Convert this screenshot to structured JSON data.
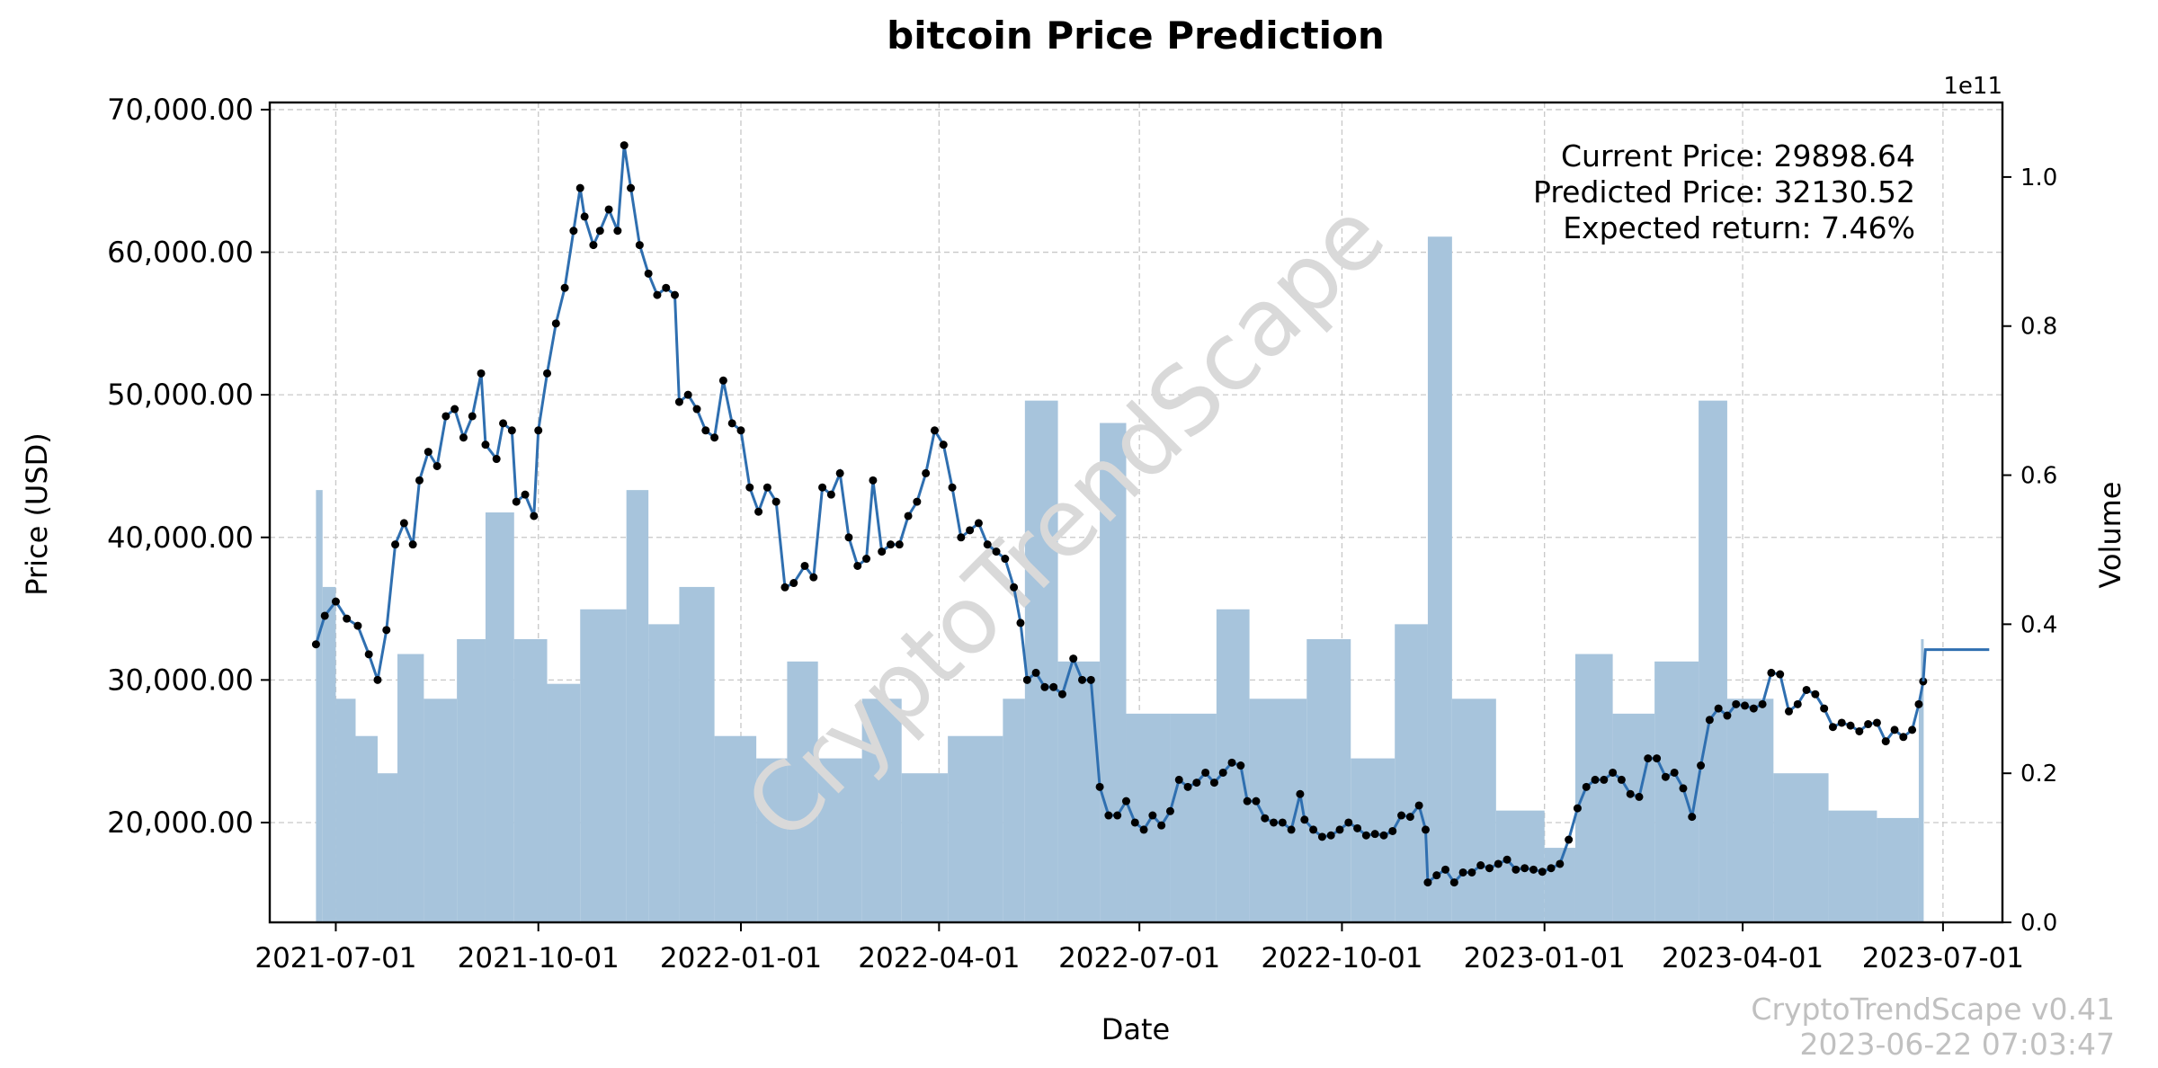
{
  "chart_data": {
    "type": "line",
    "title": "bitcoin Price Prediction",
    "xlabel": "Date",
    "ylabel": "Price (USD)",
    "y2label": "Volume",
    "y2_offset_label": "1e11",
    "xlim": [
      "2021-06-01",
      "2023-07-28"
    ],
    "ylim": [
      13000,
      70500
    ],
    "y2lim": [
      0,
      1.1
    ],
    "grid": true,
    "x_ticks": [
      "2021-07-01",
      "2021-10-01",
      "2022-01-01",
      "2022-04-01",
      "2022-07-01",
      "2022-10-01",
      "2023-01-01",
      "2023-04-01",
      "2023-07-01"
    ],
    "y_ticks": [
      20000,
      30000,
      40000,
      50000,
      60000,
      70000
    ],
    "y_tick_labels": [
      "20,000.00",
      "30,000.00",
      "40,000.00",
      "50,000.00",
      "60,000.00",
      "70,000.00"
    ],
    "y2_ticks": [
      0.0,
      0.2,
      0.4,
      0.6,
      0.8,
      1.0
    ],
    "y2_tick_labels": [
      "0.0",
      "0.2",
      "0.4",
      "0.6",
      "0.8",
      "1.0"
    ],
    "annotation": [
      "Current Price: 29898.64",
      "Predicted Price: 32130.52",
      "Expected return: 7.46%"
    ],
    "watermark": "CryptoTrendScape",
    "footer": [
      "CryptoTrendScape v0.41",
      "2023-06-22 07:03:47"
    ],
    "colors": {
      "price": "#2f6fb0",
      "markers": "#000000",
      "volume": "#a7c4dc",
      "grid": "#c8c8c8",
      "watermark": "#d9d9d9",
      "footer": "#c0c0c0"
    },
    "series": [
      {
        "kind": "price",
        "points": [
          [
            "2021-06-22",
            32500
          ],
          [
            "2021-06-26",
            34500
          ],
          [
            "2021-07-01",
            35500
          ],
          [
            "2021-07-06",
            34300
          ],
          [
            "2021-07-11",
            33800
          ],
          [
            "2021-07-16",
            31800
          ],
          [
            "2021-07-20",
            30000
          ],
          [
            "2021-07-24",
            33500
          ],
          [
            "2021-07-28",
            39500
          ],
          [
            "2021-08-01",
            41000
          ],
          [
            "2021-08-05",
            39500
          ],
          [
            "2021-08-08",
            44000
          ],
          [
            "2021-08-12",
            46000
          ],
          [
            "2021-08-16",
            45000
          ],
          [
            "2021-08-20",
            48500
          ],
          [
            "2021-08-24",
            49000
          ],
          [
            "2021-08-28",
            47000
          ],
          [
            "2021-09-01",
            48500
          ],
          [
            "2021-09-05",
            51500
          ],
          [
            "2021-09-07",
            46500
          ],
          [
            "2021-09-12",
            45500
          ],
          [
            "2021-09-15",
            48000
          ],
          [
            "2021-09-19",
            47500
          ],
          [
            "2021-09-21",
            42500
          ],
          [
            "2021-09-25",
            43000
          ],
          [
            "2021-09-29",
            41500
          ],
          [
            "2021-10-01",
            47500
          ],
          [
            "2021-10-05",
            51500
          ],
          [
            "2021-10-09",
            55000
          ],
          [
            "2021-10-13",
            57500
          ],
          [
            "2021-10-17",
            61500
          ],
          [
            "2021-10-20",
            64500
          ],
          [
            "2021-10-22",
            62500
          ],
          [
            "2021-10-26",
            60500
          ],
          [
            "2021-10-29",
            61500
          ],
          [
            "2021-11-02",
            63000
          ],
          [
            "2021-11-06",
            61500
          ],
          [
            "2021-11-09",
            67500
          ],
          [
            "2021-11-12",
            64500
          ],
          [
            "2021-11-16",
            60500
          ],
          [
            "2021-11-20",
            58500
          ],
          [
            "2021-11-24",
            57000
          ],
          [
            "2021-11-28",
            57500
          ],
          [
            "2021-12-02",
            57000
          ],
          [
            "2021-12-04",
            49500
          ],
          [
            "2021-12-08",
            50000
          ],
          [
            "2021-12-12",
            49000
          ],
          [
            "2021-12-16",
            47500
          ],
          [
            "2021-12-20",
            47000
          ],
          [
            "2021-12-24",
            51000
          ],
          [
            "2021-12-28",
            48000
          ],
          [
            "2022-01-01",
            47500
          ],
          [
            "2022-01-05",
            43500
          ],
          [
            "2022-01-09",
            41800
          ],
          [
            "2022-01-13",
            43500
          ],
          [
            "2022-01-17",
            42500
          ],
          [
            "2022-01-21",
            36500
          ],
          [
            "2022-01-25",
            36800
          ],
          [
            "2022-01-30",
            38000
          ],
          [
            "2022-02-03",
            37200
          ],
          [
            "2022-02-07",
            43500
          ],
          [
            "2022-02-11",
            43000
          ],
          [
            "2022-02-15",
            44500
          ],
          [
            "2022-02-19",
            40000
          ],
          [
            "2022-02-23",
            38000
          ],
          [
            "2022-02-27",
            38500
          ],
          [
            "2022-03-02",
            44000
          ],
          [
            "2022-03-06",
            39000
          ],
          [
            "2022-03-10",
            39500
          ],
          [
            "2022-03-14",
            39500
          ],
          [
            "2022-03-18",
            41500
          ],
          [
            "2022-03-22",
            42500
          ],
          [
            "2022-03-26",
            44500
          ],
          [
            "2022-03-30",
            47500
          ],
          [
            "2022-04-03",
            46500
          ],
          [
            "2022-04-07",
            43500
          ],
          [
            "2022-04-11",
            40000
          ],
          [
            "2022-04-15",
            40500
          ],
          [
            "2022-04-19",
            41000
          ],
          [
            "2022-04-23",
            39500
          ],
          [
            "2022-04-27",
            39000
          ],
          [
            "2022-05-01",
            38500
          ],
          [
            "2022-05-05",
            36500
          ],
          [
            "2022-05-08",
            34000
          ],
          [
            "2022-05-11",
            30000
          ],
          [
            "2022-05-15",
            30500
          ],
          [
            "2022-05-19",
            29500
          ],
          [
            "2022-05-23",
            29500
          ],
          [
            "2022-05-27",
            29000
          ],
          [
            "2022-06-01",
            31500
          ],
          [
            "2022-06-05",
            30000
          ],
          [
            "2022-06-09",
            30000
          ],
          [
            "2022-06-13",
            22500
          ],
          [
            "2022-06-17",
            20500
          ],
          [
            "2022-06-21",
            20500
          ],
          [
            "2022-06-25",
            21500
          ],
          [
            "2022-06-29",
            20000
          ],
          [
            "2022-07-03",
            19500
          ],
          [
            "2022-07-07",
            20500
          ],
          [
            "2022-07-11",
            19800
          ],
          [
            "2022-07-15",
            20800
          ],
          [
            "2022-07-19",
            23000
          ],
          [
            "2022-07-23",
            22500
          ],
          [
            "2022-07-27",
            22800
          ],
          [
            "2022-07-31",
            23500
          ],
          [
            "2022-08-04",
            22800
          ],
          [
            "2022-08-08",
            23500
          ],
          [
            "2022-08-12",
            24200
          ],
          [
            "2022-08-16",
            24000
          ],
          [
            "2022-08-19",
            21500
          ],
          [
            "2022-08-23",
            21500
          ],
          [
            "2022-08-27",
            20300
          ],
          [
            "2022-08-31",
            20000
          ],
          [
            "2022-09-04",
            20000
          ],
          [
            "2022-09-08",
            19500
          ],
          [
            "2022-09-12",
            22000
          ],
          [
            "2022-09-14",
            20200
          ],
          [
            "2022-09-18",
            19500
          ],
          [
            "2022-09-22",
            19000
          ],
          [
            "2022-09-26",
            19100
          ],
          [
            "2022-09-30",
            19500
          ],
          [
            "2022-10-04",
            20000
          ],
          [
            "2022-10-08",
            19600
          ],
          [
            "2022-10-12",
            19100
          ],
          [
            "2022-10-16",
            19200
          ],
          [
            "2022-10-20",
            19100
          ],
          [
            "2022-10-24",
            19400
          ],
          [
            "2022-10-28",
            20500
          ],
          [
            "2022-11-01",
            20400
          ],
          [
            "2022-11-05",
            21200
          ],
          [
            "2022-11-08",
            19500
          ],
          [
            "2022-11-09",
            15800
          ],
          [
            "2022-11-13",
            16300
          ],
          [
            "2022-11-17",
            16700
          ],
          [
            "2022-11-21",
            15800
          ],
          [
            "2022-11-25",
            16500
          ],
          [
            "2022-11-29",
            16500
          ],
          [
            "2022-12-03",
            17000
          ],
          [
            "2022-12-07",
            16800
          ],
          [
            "2022-12-11",
            17100
          ],
          [
            "2022-12-15",
            17400
          ],
          [
            "2022-12-19",
            16700
          ],
          [
            "2022-12-23",
            16800
          ],
          [
            "2022-12-27",
            16700
          ],
          [
            "2022-12-31",
            16550
          ],
          [
            "2023-01-04",
            16800
          ],
          [
            "2023-01-08",
            17100
          ],
          [
            "2023-01-12",
            18800
          ],
          [
            "2023-01-16",
            21000
          ],
          [
            "2023-01-20",
            22500
          ],
          [
            "2023-01-24",
            23000
          ],
          [
            "2023-01-28",
            23000
          ],
          [
            "2023-02-01",
            23500
          ],
          [
            "2023-02-05",
            23000
          ],
          [
            "2023-02-09",
            22000
          ],
          [
            "2023-02-13",
            21800
          ],
          [
            "2023-02-17",
            24500
          ],
          [
            "2023-02-21",
            24500
          ],
          [
            "2023-02-25",
            23200
          ],
          [
            "2023-03-01",
            23500
          ],
          [
            "2023-03-05",
            22400
          ],
          [
            "2023-03-09",
            20400
          ],
          [
            "2023-03-13",
            24000
          ],
          [
            "2023-03-17",
            27200
          ],
          [
            "2023-03-21",
            28000
          ],
          [
            "2023-03-25",
            27500
          ],
          [
            "2023-03-29",
            28300
          ],
          [
            "2023-04-02",
            28200
          ],
          [
            "2023-04-06",
            28000
          ],
          [
            "2023-04-10",
            28300
          ],
          [
            "2023-04-14",
            30500
          ],
          [
            "2023-04-18",
            30400
          ],
          [
            "2023-04-22",
            27800
          ],
          [
            "2023-04-26",
            28300
          ],
          [
            "2023-04-30",
            29300
          ],
          [
            "2023-05-04",
            29000
          ],
          [
            "2023-05-08",
            28000
          ],
          [
            "2023-05-12",
            26700
          ],
          [
            "2023-05-16",
            27000
          ],
          [
            "2023-05-20",
            26800
          ],
          [
            "2023-05-24",
            26400
          ],
          [
            "2023-05-28",
            26900
          ],
          [
            "2023-06-01",
            27000
          ],
          [
            "2023-06-05",
            25700
          ],
          [
            "2023-06-09",
            26500
          ],
          [
            "2023-06-13",
            26000
          ],
          [
            "2023-06-17",
            26500
          ],
          [
            "2023-06-20",
            28300
          ],
          [
            "2023-06-22",
            29898.64
          ]
        ]
      },
      {
        "kind": "prediction",
        "points": [
          [
            "2023-06-22",
            29898.64
          ],
          [
            "2023-06-23",
            32130.52
          ],
          [
            "2023-07-22",
            32130.52
          ]
        ]
      },
      {
        "kind": "volume",
        "note_units": "1e11",
        "points": [
          [
            "2021-06-22",
            0.58
          ],
          [
            "2021-06-25",
            0.45
          ],
          [
            "2021-07-01",
            0.3
          ],
          [
            "2021-07-10",
            0.25
          ],
          [
            "2021-07-20",
            0.2
          ],
          [
            "2021-07-29",
            0.36
          ],
          [
            "2021-08-10",
            0.3
          ],
          [
            "2021-08-25",
            0.38
          ],
          [
            "2021-09-07",
            0.55
          ],
          [
            "2021-09-20",
            0.38
          ],
          [
            "2021-10-05",
            0.32
          ],
          [
            "2021-10-20",
            0.42
          ],
          [
            "2021-11-10",
            0.58
          ],
          [
            "2021-11-20",
            0.4
          ],
          [
            "2021-12-04",
            0.45
          ],
          [
            "2021-12-20",
            0.25
          ],
          [
            "2022-01-08",
            0.22
          ],
          [
            "2022-01-22",
            0.35
          ],
          [
            "2022-02-05",
            0.22
          ],
          [
            "2022-02-25",
            0.3
          ],
          [
            "2022-03-15",
            0.2
          ],
          [
            "2022-04-05",
            0.25
          ],
          [
            "2022-04-30",
            0.3
          ],
          [
            "2022-05-10",
            0.7
          ],
          [
            "2022-05-25",
            0.35
          ],
          [
            "2022-06-13",
            0.67
          ],
          [
            "2022-06-25",
            0.28
          ],
          [
            "2022-07-15",
            0.28
          ],
          [
            "2022-08-05",
            0.42
          ],
          [
            "2022-08-20",
            0.3
          ],
          [
            "2022-09-15",
            0.38
          ],
          [
            "2022-10-05",
            0.22
          ],
          [
            "2022-10-25",
            0.4
          ],
          [
            "2022-11-09",
            0.92
          ],
          [
            "2022-11-20",
            0.3
          ],
          [
            "2022-12-10",
            0.15
          ],
          [
            "2023-01-01",
            0.1
          ],
          [
            "2023-01-15",
            0.36
          ],
          [
            "2023-02-01",
            0.28
          ],
          [
            "2023-02-20",
            0.35
          ],
          [
            "2023-03-12",
            0.7
          ],
          [
            "2023-03-25",
            0.3
          ],
          [
            "2023-04-15",
            0.2
          ],
          [
            "2023-05-10",
            0.15
          ],
          [
            "2023-06-01",
            0.14
          ],
          [
            "2023-06-20",
            0.3
          ],
          [
            "2023-06-21",
            0.38
          ]
        ]
      }
    ]
  }
}
